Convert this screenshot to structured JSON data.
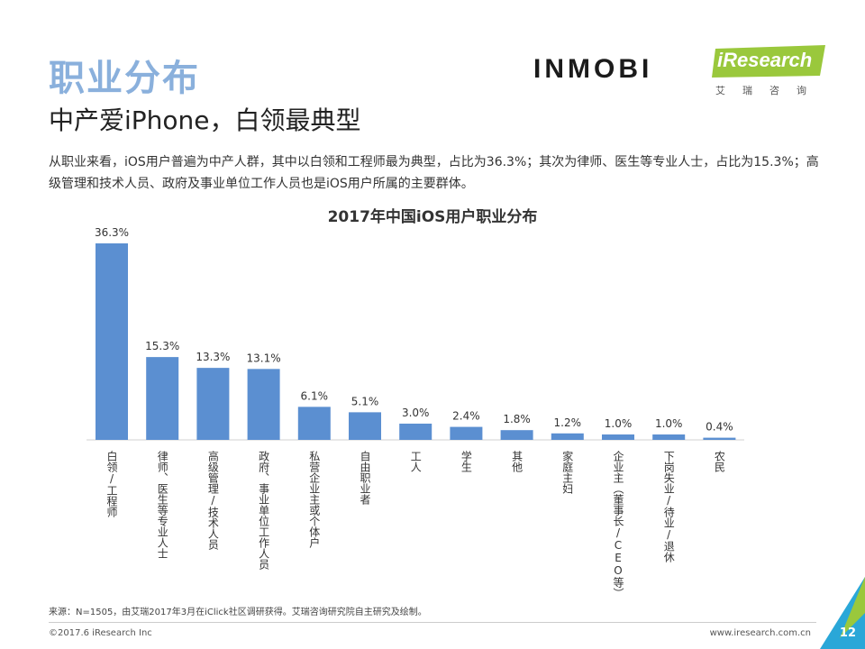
{
  "header": {
    "section_title": "职业分布",
    "subtitle": "中产爱iPhone，白领最典型"
  },
  "logos": {
    "inmobi": "INMOBI",
    "iresearch": "iResearch",
    "iresearch_cn": "艾瑞咨询"
  },
  "description": "从职业来看，iOS用户普遍为中产人群，其中以白领和工程师最为典型，占比为36.3%；其次为律师、医生等专业人士，占比为15.3%；高级管理和技术人员、政府及事业单位工作人员也是iOS用户所属的主要群体。",
  "chart_data": {
    "type": "bar",
    "title": "2017年中国iOS用户职业分布",
    "categories": [
      "白领/工程师",
      "律师、医生等专业人士",
      "高级管理/技术人员",
      "政府、事业单位工作人员",
      "私营企业主或个体户",
      "自由职业者",
      "工人",
      "学生",
      "其他",
      "家庭主妇",
      "企业主（董事长/CEO等）",
      "下岗失业/待业/退休",
      "农民"
    ],
    "values": [
      36.3,
      15.3,
      13.3,
      13.1,
      6.1,
      5.1,
      3.0,
      2.4,
      1.8,
      1.2,
      1.0,
      1.0,
      0.4
    ],
    "labels": [
      "36.3%",
      "15.3%",
      "13.3%",
      "13.1%",
      "6.1%",
      "5.1%",
      "3.0%",
      "2.4%",
      "1.8%",
      "1.2%",
      "1.0%",
      "1.0%",
      "0.4%"
    ],
    "unit": "%",
    "ylim": [
      0,
      40
    ],
    "bar_color": "#5b8fd1",
    "grid": false,
    "legend": "none"
  },
  "footer": {
    "source": "来源：N=1505，由艾瑞2017年3月在iClick社区调研获得。艾瑞咨询研究院自主研究及绘制。",
    "copyright": "©2017.6 iResearch Inc",
    "website": "www.iresearch.com.cn",
    "page_number": "12"
  },
  "colors": {
    "section_title": "#8ab0dc",
    "accent_green": "#9ac83c",
    "accent_blue": "#2aa7d8"
  }
}
